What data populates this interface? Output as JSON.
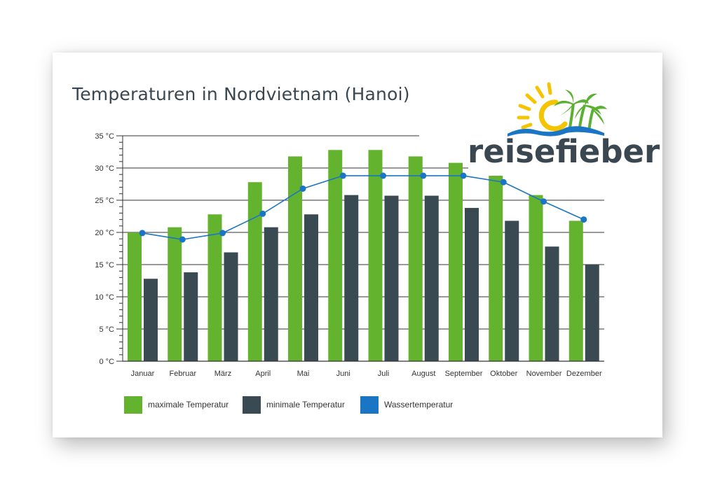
{
  "chart_data": {
    "type": "bar",
    "title": "Temperaturen in Nordvietnam (Hanoi)",
    "categories": [
      "Januar",
      "Februar",
      "März",
      "April",
      "Mai",
      "Juni",
      "Juli",
      "August",
      "September",
      "Oktober",
      "November",
      "Dezember"
    ],
    "series": [
      {
        "name": "maximale Temperatur",
        "type": "bar",
        "color": "#64b32e",
        "values": [
          20,
          20.8,
          22.8,
          27.8,
          31.8,
          32.8,
          32.8,
          31.8,
          30.8,
          28.8,
          25.8,
          21.8
        ]
      },
      {
        "name": "minimale Temperatur",
        "type": "bar",
        "color": "#3a4a52",
        "values": [
          12.8,
          13.8,
          16.9,
          20.8,
          22.8,
          25.8,
          25.7,
          25.7,
          23.8,
          21.8,
          17.8,
          15
        ]
      },
      {
        "name": "Wassertemperatur",
        "type": "line",
        "color": "#1a76c4",
        "values": [
          19.9,
          18.9,
          19.9,
          22.9,
          26.8,
          28.8,
          28.8,
          28.8,
          28.8,
          27.8,
          24.8,
          22
        ]
      }
    ],
    "yticks": [
      "0 °C",
      "5 °C",
      "10 °C",
      "15 °C",
      "20 °C",
      "25 °C",
      "30 °C",
      "35 °C"
    ],
    "ylim": [
      0,
      35
    ],
    "grid": true,
    "legend_position": "bottom-left"
  },
  "logo": {
    "text": "reisefieber",
    "colors": {
      "text": "#3a4750",
      "sun": "#f5c400",
      "palm": "#5ab031",
      "wave": "#1a76c4"
    }
  }
}
